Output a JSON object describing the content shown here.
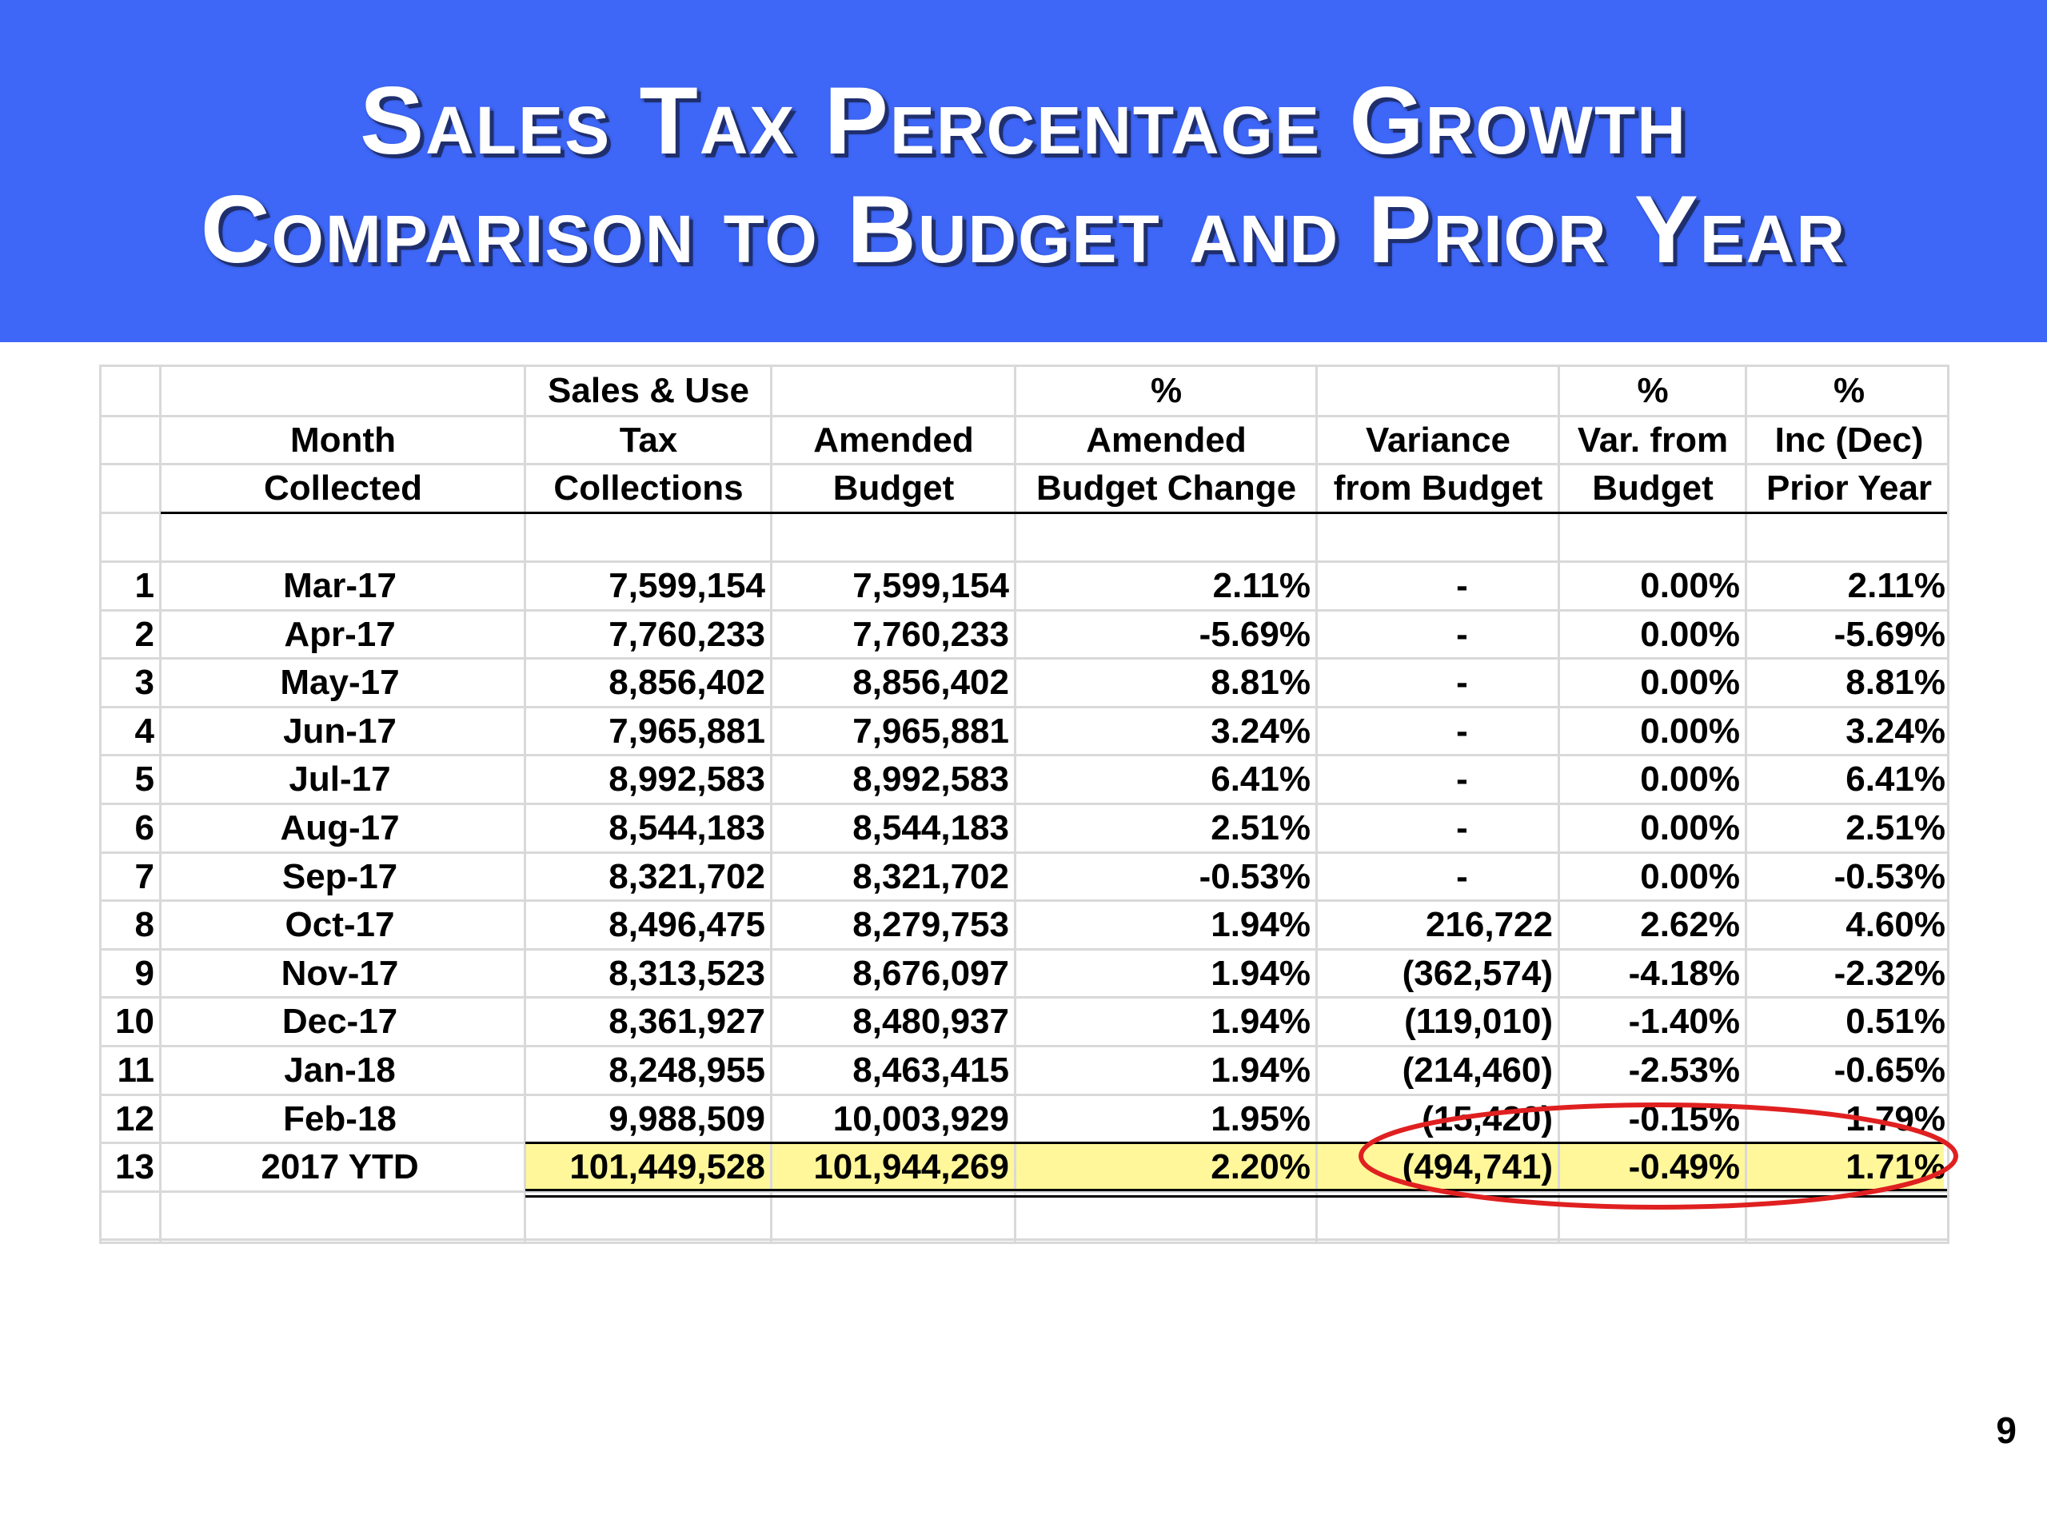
{
  "slide": {
    "title_line1": "Sales Tax Percentage Growth",
    "title_line2": "Comparison to Budget and Prior Year",
    "page_number": "9",
    "banner_color": "#3e67f7",
    "highlight_color": "#e02020",
    "ytd_fill_color": "#fff799"
  },
  "table": {
    "headers": [
      [
        "",
        "",
        "",
        ""
      ],
      [
        "",
        "Month",
        "Collected"
      ],
      [
        "Sales & Use",
        "Tax",
        "Collections"
      ],
      [
        "",
        "Amended",
        "Budget"
      ],
      [
        "%",
        "Amended",
        "Budget Change"
      ],
      [
        "",
        "Variance",
        "from Budget"
      ],
      [
        "%",
        "Var. from",
        "Budget"
      ],
      [
        "%",
        "Inc (Dec)",
        "Prior Year"
      ]
    ],
    "rows": [
      [
        "1",
        "Mar-17",
        "7,599,154",
        "7,599,154",
        "2.11%",
        "-",
        "0.00%",
        "2.11%"
      ],
      [
        "2",
        "Apr-17",
        "7,760,233",
        "7,760,233",
        "-5.69%",
        "-",
        "0.00%",
        "-5.69%"
      ],
      [
        "3",
        "May-17",
        "8,856,402",
        "8,856,402",
        "8.81%",
        "-",
        "0.00%",
        "8.81%"
      ],
      [
        "4",
        "Jun-17",
        "7,965,881",
        "7,965,881",
        "3.24%",
        "-",
        "0.00%",
        "3.24%"
      ],
      [
        "5",
        "Jul-17",
        "8,992,583",
        "8,992,583",
        "6.41%",
        "-",
        "0.00%",
        "6.41%"
      ],
      [
        "6",
        "Aug-17",
        "8,544,183",
        "8,544,183",
        "2.51%",
        "-",
        "0.00%",
        "2.51%"
      ],
      [
        "7",
        "Sep-17",
        "8,321,702",
        "8,321,702",
        "-0.53%",
        "-",
        "0.00%",
        "-0.53%"
      ],
      [
        "8",
        "Oct-17",
        "8,496,475",
        "8,279,753",
        "1.94%",
        "216,722",
        "2.62%",
        "4.60%"
      ],
      [
        "9",
        "Nov-17",
        "8,313,523",
        "8,676,097",
        "1.94%",
        "(362,574)",
        "-4.18%",
        "-2.32%"
      ],
      [
        "10",
        "Dec-17",
        "8,361,927",
        "8,480,937",
        "1.94%",
        "(119,010)",
        "-1.40%",
        "0.51%"
      ],
      [
        "11",
        "Jan-18",
        "8,248,955",
        "8,463,415",
        "1.94%",
        "(214,460)",
        "-2.53%",
        "-0.65%"
      ],
      [
        "12",
        "Feb-18",
        "9,988,509",
        "10,003,929",
        "1.95%",
        "(15,420)",
        "-0.15%",
        "1.79%"
      ],
      [
        "13",
        "2017 YTD",
        "101,449,528",
        "101,944,269",
        "2.20%",
        "(494,741)",
        "-0.49%",
        "1.71%"
      ]
    ]
  }
}
